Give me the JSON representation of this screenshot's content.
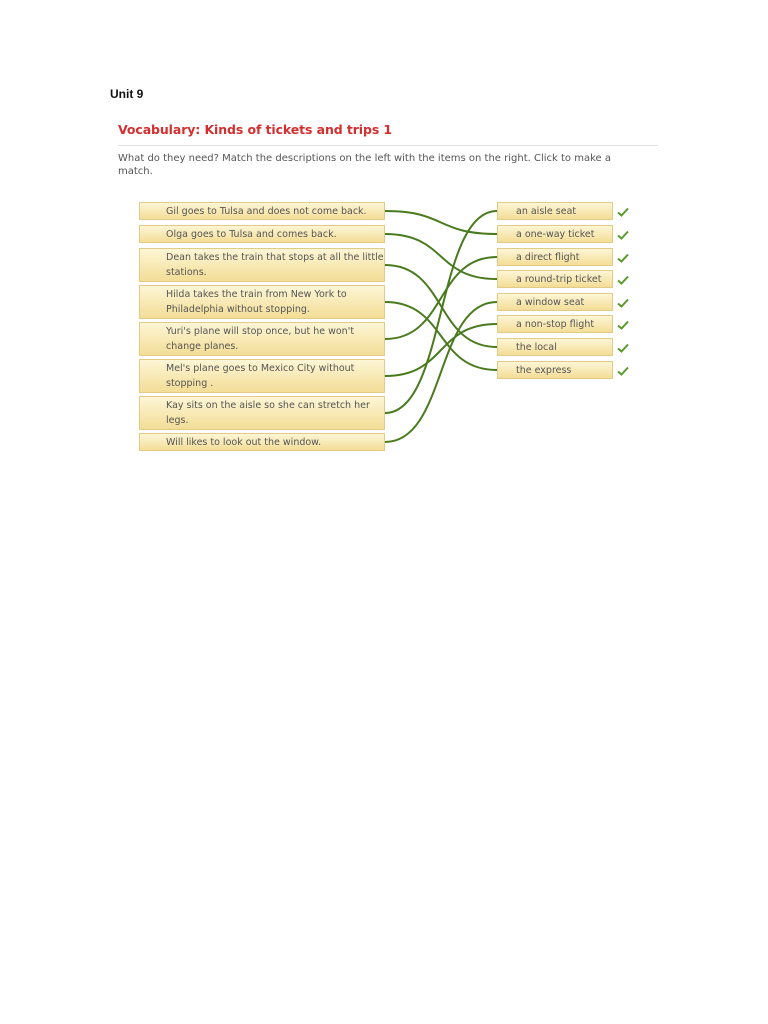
{
  "page": {
    "unit": "Unit 9",
    "title": "Vocabulary: Kinds of tickets and trips 1",
    "instructions": "What do they need? Match the descriptions on the left with the items on the right. Click to make a match."
  },
  "left_items": [
    "Gil goes to Tulsa and does not come back.",
    "Olga goes to Tulsa and comes back.",
    "Dean takes the train that stops at all the little stations.",
    "Hilda takes the train from New York to Philadelphia without stopping.",
    "Yuri's plane will stop once, but he won't change planes.",
    "Mel's plane goes to Mexico City without stopping .",
    "Kay sits on the aisle so she can stretch her legs.",
    "Will likes to look out the window."
  ],
  "right_items": [
    "an aisle seat",
    "a one-way ticket",
    "a direct flight",
    "a round-trip ticket",
    "a window seat",
    "a non-stop flight",
    "the local",
    "the express"
  ],
  "matches": [
    [
      0,
      1
    ],
    [
      1,
      3
    ],
    [
      2,
      6
    ],
    [
      3,
      7
    ],
    [
      4,
      2
    ],
    [
      5,
      5
    ],
    [
      6,
      0
    ],
    [
      7,
      4
    ]
  ],
  "colors": {
    "line": "#4a7a1e",
    "check": "#5a9a2a",
    "title": "#d32f2f"
  }
}
